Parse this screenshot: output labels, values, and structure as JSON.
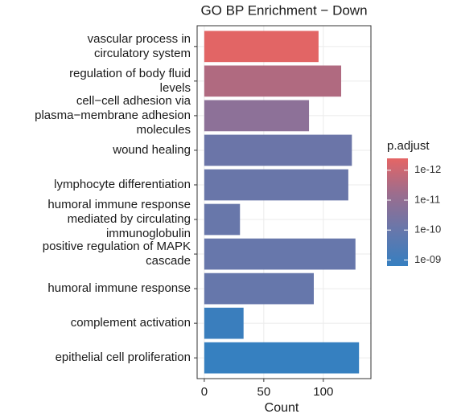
{
  "chart_data": {
    "type": "bar",
    "orientation": "horizontal",
    "title": "GO BP Enrichment − Down",
    "x_label": "Count",
    "categories": [
      "vascular process in\ncirculatory system",
      "regulation of body fluid\nlevels",
      "cell−cell adhesion via\nplasma−membrane adhesion\nmolecules",
      "wound healing",
      "lymphocyte differentiation",
      "humoral immune response\nmediated by circulating\nimmunoglobulin",
      "positive regulation of MAPK\ncascade",
      "humoral immune response",
      "complement activation",
      "epithelial cell proliferation"
    ],
    "values": [
      96,
      115,
      88,
      124,
      121,
      30,
      127,
      92,
      33,
      130
    ],
    "colors": [
      "#e26565",
      "#b06a80",
      "#8d7198",
      "#6b75a8",
      "#6976a9",
      "#6877aa",
      "#6777ab",
      "#6677ab",
      "#3a7ebd",
      "#3680c0"
    ],
    "xlim": [
      -6,
      140
    ],
    "xticks": [
      0,
      50,
      100
    ],
    "grid": true,
    "colorbar": {
      "title": "p.adjust",
      "log": true,
      "lim": [
        4e-13,
        1.6e-09
      ],
      "gradient": [
        "#e56565",
        "#9b6d8e",
        "#6777ab",
        "#367fc0"
      ],
      "ticks": [
        {
          "value": 1e-12,
          "label": "1e-12"
        },
        {
          "value": 1e-11,
          "label": "1e-11"
        },
        {
          "value": 1e-10,
          "label": "1e-10"
        },
        {
          "value": 1e-09,
          "label": "1e-09"
        }
      ]
    }
  }
}
